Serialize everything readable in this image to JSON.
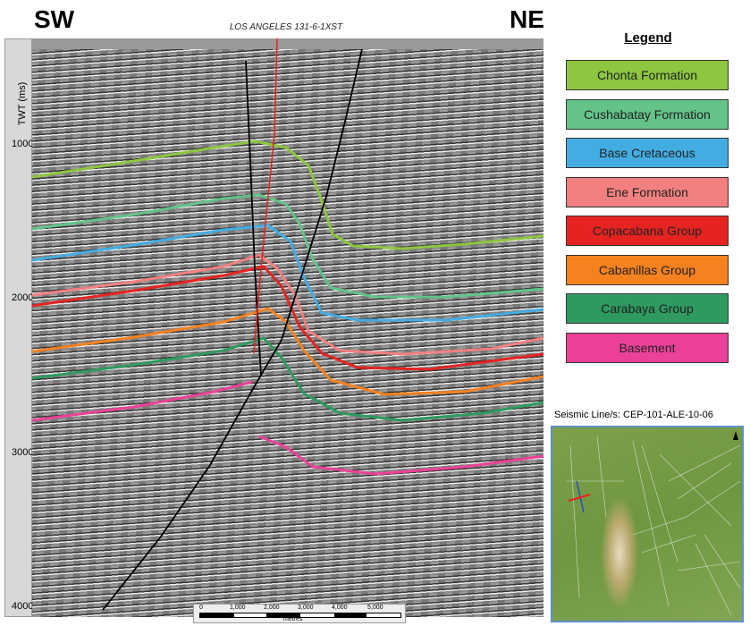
{
  "header": {
    "left_direction": "SW",
    "right_direction": "NE",
    "well_name": "LOS ANGELES 131-6-1XST"
  },
  "axis": {
    "title": "TWT (ms)",
    "ticks": [
      "1000",
      "2000",
      "3000",
      "4000"
    ]
  },
  "scale_bar": {
    "labels": [
      "0",
      "1,000",
      "2,000",
      "3,000",
      "4,000",
      "5,000"
    ],
    "unit": "metres"
  },
  "legend": {
    "title": "Legend",
    "items": [
      {
        "label": "Chonta Formation",
        "color": "#8dc63f"
      },
      {
        "label": "Cushabatay Formation",
        "color": "#63c389"
      },
      {
        "label": "Base Cretaceous",
        "color": "#43ade2"
      },
      {
        "label": "Ene Formation",
        "color": "#f38080"
      },
      {
        "label": "Copacabana Group",
        "color": "#e52421"
      },
      {
        "label": "Cabanillas Group",
        "color": "#f5821f"
      },
      {
        "label": "Carabaya Group",
        "color": "#2e9a60"
      },
      {
        "label": "Basement",
        "color": "#ec4199"
      }
    ]
  },
  "map": {
    "caption": "Seismic Line/s: CEP-101-ALE-10-06"
  }
}
